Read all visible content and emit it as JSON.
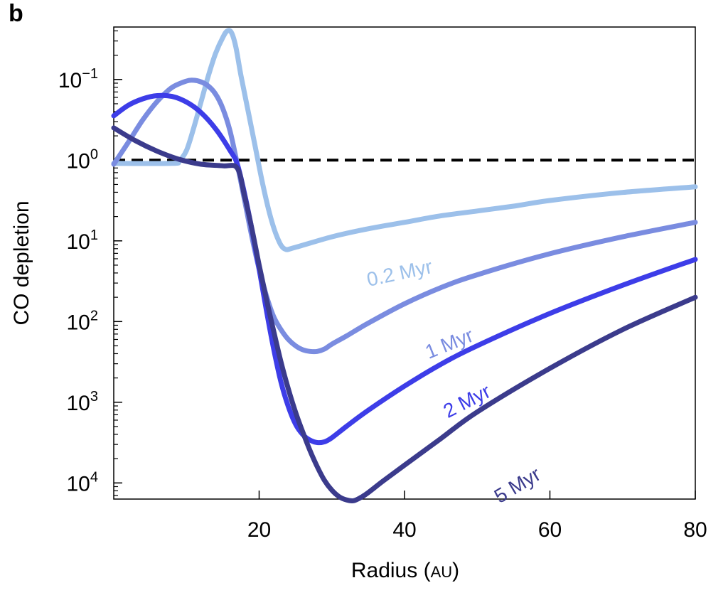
{
  "panel_label": "b",
  "chart_data": {
    "type": "line",
    "xlabel": "Radius",
    "xlabel_unit": "AU",
    "ylabel": "CO depletion",
    "xlim": [
      0,
      80
    ],
    "ylim_exponent": [
      -1.65,
      4.2
    ],
    "y_axis": "log, inverted (depletion factor)",
    "x_ticks": [
      "20",
      "40",
      "60",
      "80"
    ],
    "x_tick_values": [
      20,
      40,
      60,
      80
    ],
    "y_ticks": [
      {
        "base": "10",
        "exp": "−1",
        "value": -1
      },
      {
        "base": "10",
        "exp": "0",
        "value": 0
      },
      {
        "base": "10",
        "exp": "1",
        "value": 1
      },
      {
        "base": "10",
        "exp": "2",
        "value": 2
      },
      {
        "base": "10",
        "exp": "3",
        "value": 3
      },
      {
        "base": "10",
        "exp": "4",
        "value": 4
      }
    ],
    "reference_line": {
      "y_exponent": 0,
      "style": "dashed",
      "color": "#000000"
    },
    "series": [
      {
        "name": "0.2 Myr",
        "color": "#9cc0ea",
        "x": [
          0,
          8,
          9,
          10,
          11,
          12,
          13,
          14,
          15,
          15.6,
          16.2,
          16.8,
          17.5,
          18.5,
          19.5,
          20.5,
          21.5,
          22.5,
          23.5,
          25,
          30,
          35,
          40,
          45,
          50,
          55,
          60,
          70,
          80
        ],
        "y": [
          0.04,
          0.04,
          0.01,
          -0.12,
          -0.4,
          -0.72,
          -1.04,
          -1.32,
          -1.52,
          -1.6,
          -1.58,
          -1.4,
          -1.05,
          -0.6,
          -0.15,
          0.3,
          0.68,
          0.96,
          1.1,
          1.08,
          0.95,
          0.85,
          0.77,
          0.69,
          0.63,
          0.57,
          0.5,
          0.4,
          0.33
        ]
      },
      {
        "name": "1 Myr",
        "color": "#7a8ce0",
        "x": [
          0,
          2,
          4,
          6,
          8,
          10,
          11,
          12,
          13,
          14,
          15,
          16,
          17,
          18,
          19,
          20,
          21,
          22,
          23,
          24,
          25,
          26,
          27,
          28,
          29,
          30,
          32,
          35,
          40,
          45,
          50,
          60,
          70,
          80
        ],
        "y": [
          0.05,
          -0.22,
          -0.5,
          -0.73,
          -0.9,
          -0.98,
          -0.99,
          -0.97,
          -0.92,
          -0.82,
          -0.64,
          -0.36,
          0.05,
          0.5,
          0.95,
          1.35,
          1.68,
          1.94,
          2.1,
          2.22,
          2.3,
          2.35,
          2.37,
          2.37,
          2.34,
          2.28,
          2.18,
          2.02,
          1.78,
          1.58,
          1.42,
          1.16,
          0.95,
          0.77
        ]
      },
      {
        "name": "2 Myr",
        "color": "#3d3de8",
        "x": [
          0,
          2,
          4,
          6,
          8,
          10,
          12,
          14,
          16,
          17,
          18,
          19,
          20,
          21,
          22,
          23,
          24,
          25,
          26,
          27,
          28,
          29,
          30,
          32,
          35,
          40,
          45,
          50,
          60,
          70,
          80
        ],
        "y": [
          -0.55,
          -0.68,
          -0.76,
          -0.8,
          -0.79,
          -0.72,
          -0.59,
          -0.39,
          -0.12,
          0.05,
          0.42,
          0.86,
          1.35,
          1.86,
          2.34,
          2.75,
          3.05,
          3.27,
          3.4,
          3.47,
          3.5,
          3.49,
          3.44,
          3.3,
          3.1,
          2.8,
          2.53,
          2.3,
          1.9,
          1.55,
          1.23
        ]
      },
      {
        "name": "5 Myr",
        "color": "#3b3b8c",
        "x": [
          0,
          3,
          6,
          9,
          12,
          15,
          17,
          18,
          19,
          20,
          21,
          22,
          23,
          24,
          25,
          26,
          27,
          28,
          29,
          30,
          31,
          32,
          33,
          34,
          35,
          37,
          40,
          45,
          50,
          60,
          70,
          80
        ],
        "y": [
          -0.4,
          -0.24,
          -0.11,
          -0.01,
          0.05,
          0.07,
          0.1,
          0.45,
          0.85,
          1.3,
          1.72,
          2.12,
          2.5,
          2.83,
          3.12,
          3.37,
          3.6,
          3.8,
          3.97,
          4.09,
          4.17,
          4.21,
          4.22,
          4.18,
          4.12,
          3.98,
          3.78,
          3.45,
          3.12,
          2.58,
          2.1,
          1.7
        ]
      }
    ],
    "series_labels": [
      {
        "text": "0.2 Myr",
        "series": 0,
        "at_x": 39.5,
        "at_y": 1.48,
        "angle": -12
      },
      {
        "text": "1 Myr",
        "series": 1,
        "at_x": 46.5,
        "at_y": 2.35,
        "angle": -22
      },
      {
        "text": "2 Myr",
        "series": 2,
        "at_x": 49,
        "at_y": 3.06,
        "angle": -27
      },
      {
        "text": "5 Myr",
        "series": 3,
        "at_x": 56,
        "at_y": 4.1,
        "angle": -31
      }
    ]
  }
}
